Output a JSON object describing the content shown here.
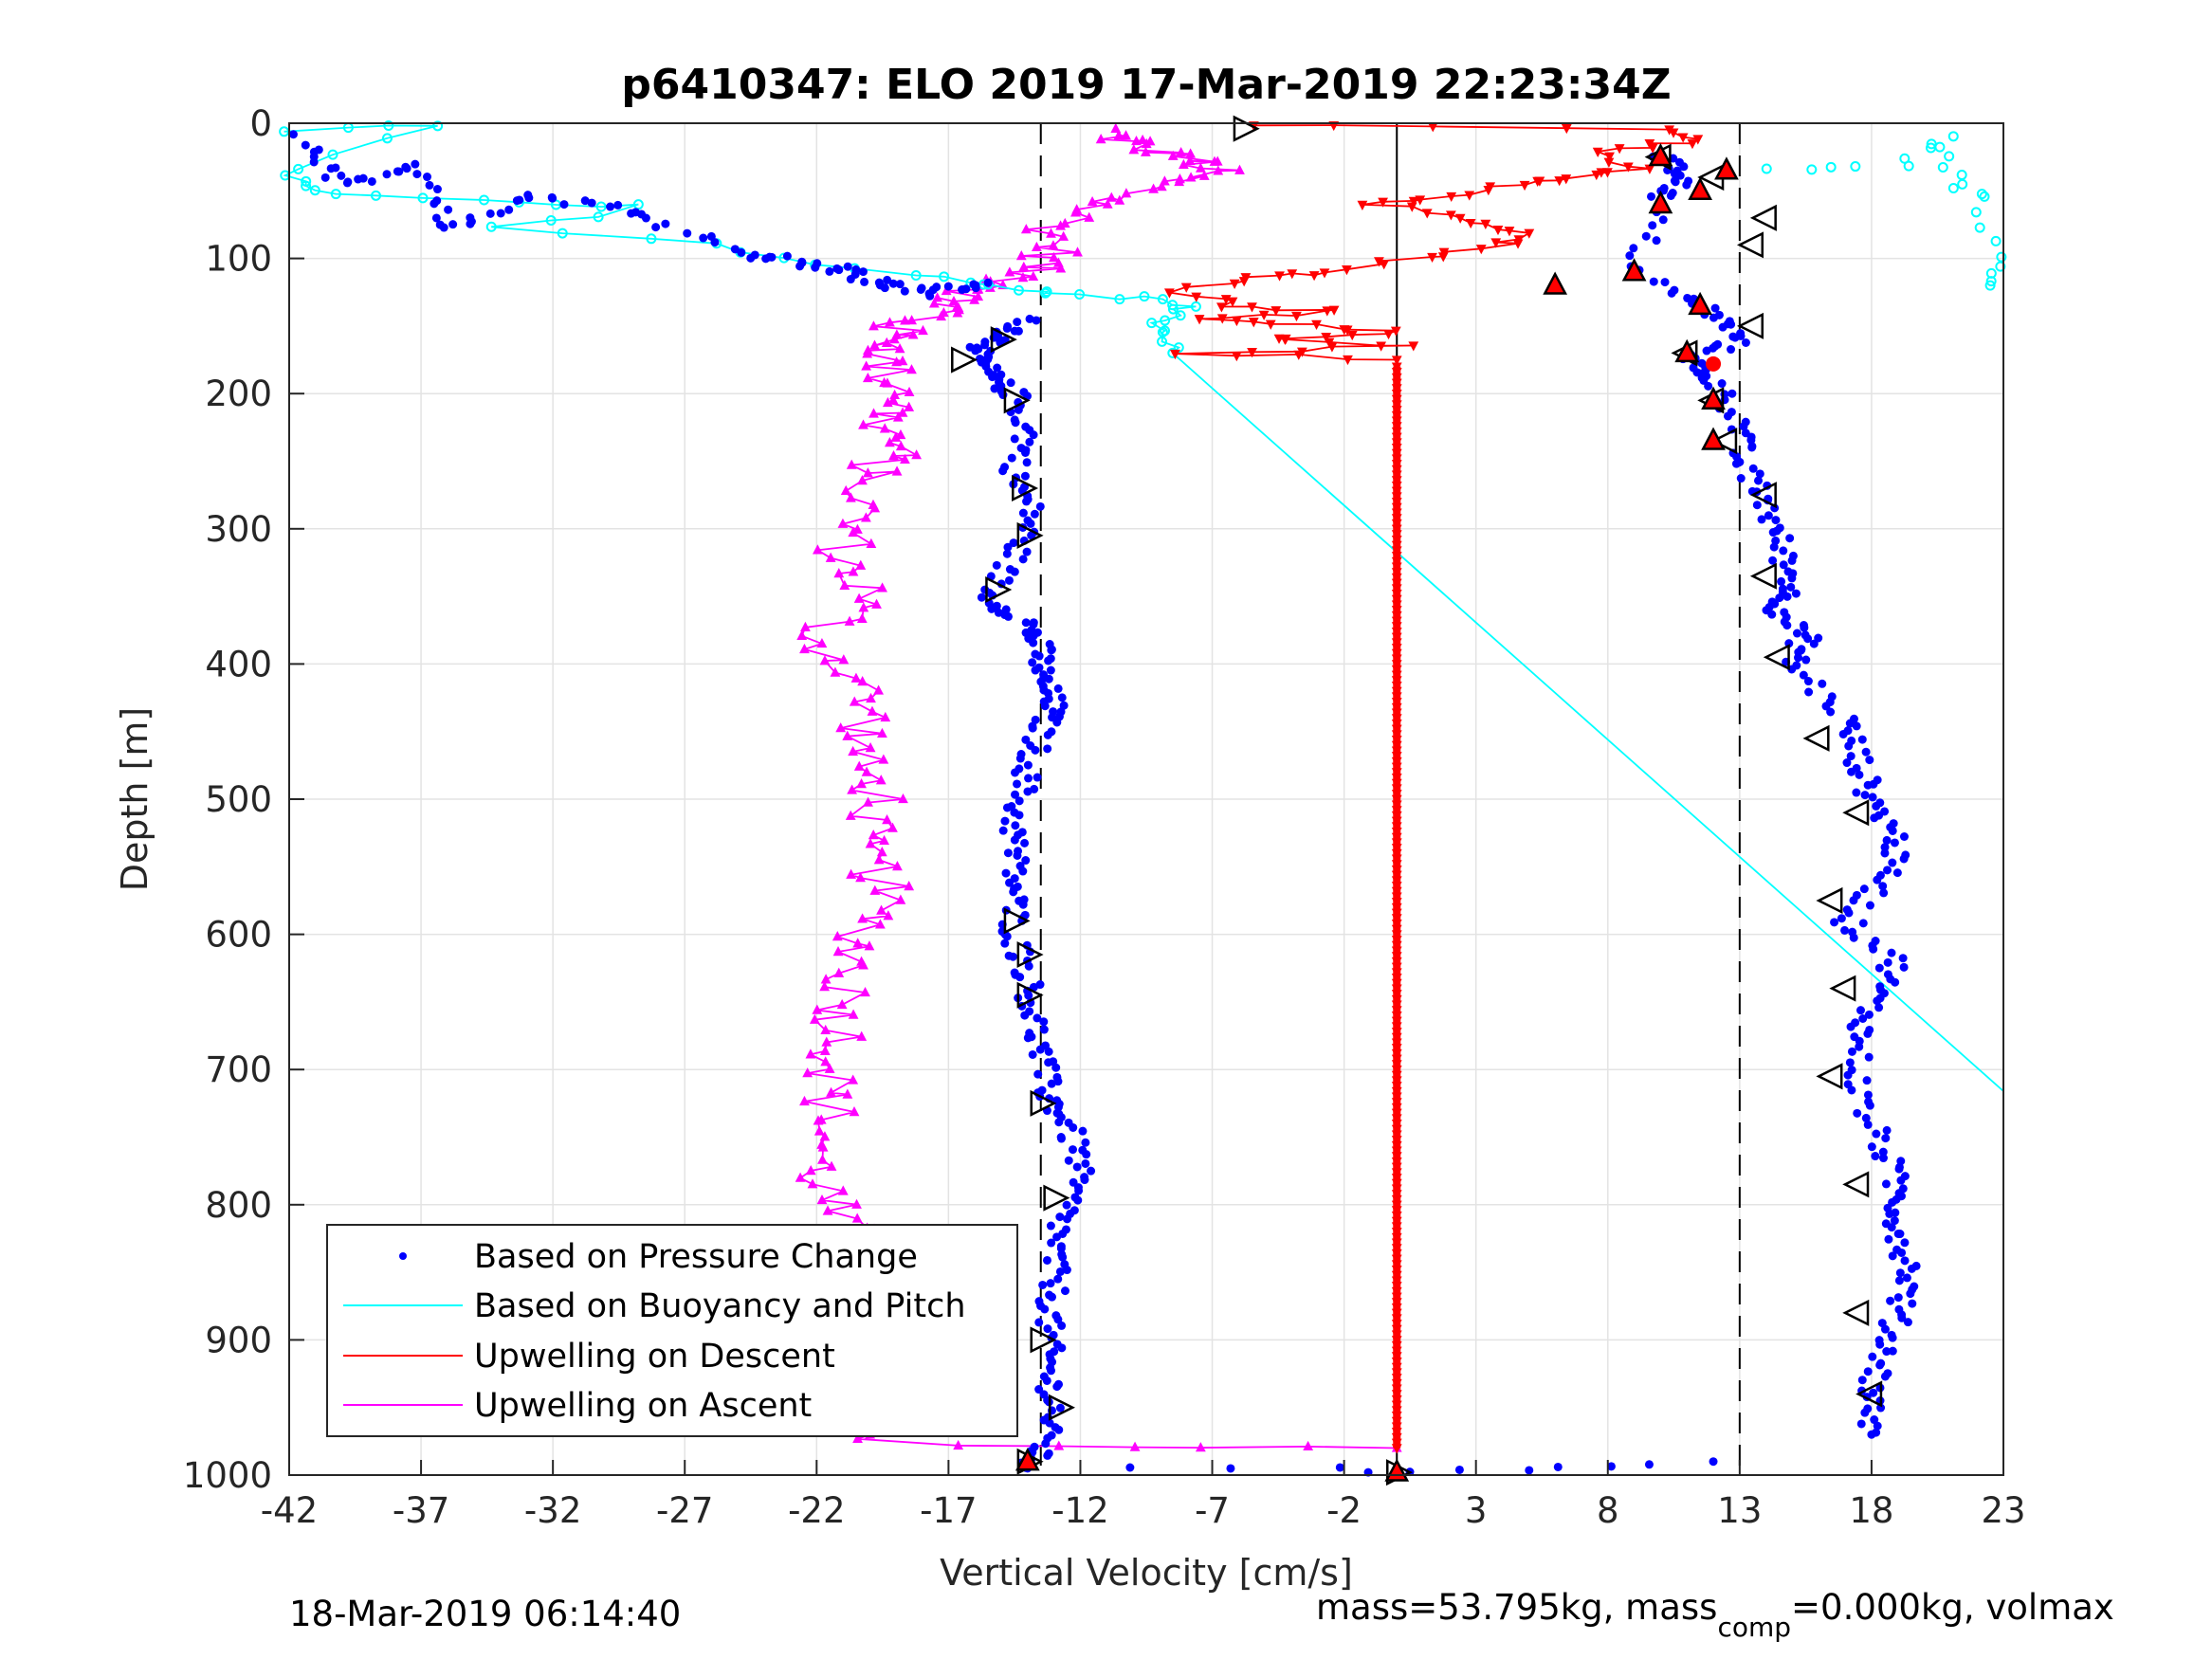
{
  "chart_data": {
    "type": "scatter",
    "title": "p6410347: ELO 2019 17-Mar-2019 22:23:34Z",
    "xlabel": "Vertical Velocity [cm/s]",
    "ylabel": "Depth [m]",
    "xlim": [
      -42,
      23
    ],
    "ylim": [
      1000,
      0
    ],
    "y_reversed": true,
    "grid": true,
    "legend_position": "lower-left",
    "xticks": [
      -42,
      -37,
      -32,
      -27,
      -22,
      -17,
      -12,
      -7,
      -2,
      3,
      8,
      13,
      18,
      23
    ],
    "xtick_labels": [
      "-42",
      "-37",
      "-32",
      "-27",
      "-22",
      "-17",
      "-12",
      "-7",
      "-2",
      "3",
      "8",
      "13",
      "18",
      "23"
    ],
    "yticks": [
      0,
      100,
      200,
      300,
      400,
      500,
      600,
      700,
      800,
      900,
      1000
    ],
    "ytick_labels": [
      "0",
      "100",
      "200",
      "300",
      "400",
      "500",
      "600",
      "700",
      "800",
      "900",
      "1000"
    ],
    "reference_lines": {
      "solid_x": 0,
      "dashed_x": [
        -13.5,
        13
      ]
    },
    "series": [
      {
        "name": "Based on Pressure Change",
        "color": "#0000ff",
        "marker": "dot",
        "descent": [
          [
            -14,
            145
          ],
          [
            -15,
            160
          ],
          [
            -16,
            170
          ],
          [
            -15.5,
            185
          ],
          [
            -14.5,
            200
          ],
          [
            -14,
            230
          ],
          [
            -14.5,
            260
          ],
          [
            -13.8,
            290
          ],
          [
            -14.5,
            320
          ],
          [
            -15.5,
            350
          ],
          [
            -14,
            370
          ],
          [
            -13.5,
            390
          ],
          [
            -13.5,
            410
          ],
          [
            -13,
            430
          ],
          [
            -13.5,
            450
          ],
          [
            -14,
            480
          ],
          [
            -14.5,
            510
          ],
          [
            -14.5,
            540
          ],
          [
            -14.5,
            570
          ],
          [
            -14.5,
            600
          ],
          [
            -14,
            630
          ],
          [
            -13.8,
            660
          ],
          [
            -13.5,
            690
          ],
          [
            -13.2,
            720
          ],
          [
            -12.5,
            740
          ],
          [
            -12,
            770
          ],
          [
            -12.5,
            800
          ],
          [
            -13,
            830
          ],
          [
            -13,
            860
          ],
          [
            -13.2,
            890
          ],
          [
            -13.2,
            920
          ],
          [
            -13,
            950
          ],
          [
            -13.5,
            980
          ],
          [
            -14,
            995
          ]
        ],
        "ascent": [
          [
            10,
            25
          ],
          [
            11,
            40
          ],
          [
            10,
            55
          ],
          [
            9,
            110
          ],
          [
            12,
            140
          ],
          [
            13,
            160
          ],
          [
            11,
            175
          ],
          [
            12,
            190
          ],
          [
            13,
            220
          ],
          [
            13,
            250
          ],
          [
            14,
            280
          ],
          [
            14.5,
            310
          ],
          [
            15,
            340
          ],
          [
            14.5,
            360
          ],
          [
            15.5,
            380
          ],
          [
            15,
            400
          ],
          [
            17,
            440
          ],
          [
            17.5,
            470
          ],
          [
            18,
            500
          ],
          [
            19,
            530
          ],
          [
            18.5,
            560
          ],
          [
            17,
            590
          ],
          [
            19,
            620
          ],
          [
            18,
            650
          ],
          [
            17.5,
            680
          ],
          [
            17.5,
            720
          ],
          [
            18.5,
            760
          ],
          [
            19,
            790
          ],
          [
            19,
            820
          ],
          [
            19.5,
            850
          ],
          [
            19,
            880
          ],
          [
            18.5,
            910
          ],
          [
            18,
            940
          ],
          [
            18,
            970
          ]
        ],
        "surface": [
          [
            -41.5,
            10
          ],
          [
            -40,
            45
          ],
          [
            -37,
            30
          ],
          [
            -36,
            80
          ],
          [
            -33,
            55
          ],
          [
            -29,
            65
          ],
          [
            -25,
            95
          ],
          [
            -22,
            105
          ],
          [
            -20,
            115
          ],
          [
            -18,
            125
          ],
          [
            -15.5,
            118
          ]
        ],
        "bottom": [
          [
            -10,
            993
          ],
          [
            -2,
            995
          ],
          [
            0.5,
            998
          ],
          [
            5,
            995
          ],
          [
            8,
            993
          ],
          [
            12,
            990
          ]
        ]
      },
      {
        "name": "Based on Buoyancy and Pitch",
        "color": "#00ffff",
        "marker": "circle",
        "line_shallow": [
          [
            -42,
            5
          ],
          [
            -36.5,
            2
          ],
          [
            -42,
            35
          ],
          [
            -41.5,
            45
          ],
          [
            -39,
            55
          ],
          [
            -33,
            57
          ],
          [
            -29,
            62
          ],
          [
            -34,
            78
          ],
          [
            -26,
            90
          ],
          [
            -22,
            105
          ],
          [
            -17,
            115
          ],
          [
            -15,
            120
          ],
          [
            -13,
            125
          ],
          [
            -10,
            130
          ],
          [
            -8,
            135
          ],
          [
            -9,
            145
          ],
          [
            -9,
            155
          ],
          [
            -8.5,
            170
          ]
        ],
        "line_deep": [
          [
            -8.5,
            170
          ],
          [
            23,
            716
          ]
        ],
        "right_cluster": [
          [
            14,
            35
          ],
          [
            19,
            30
          ],
          [
            21,
            10
          ],
          [
            21,
            40
          ],
          [
            22,
            55
          ],
          [
            22.5,
            100
          ],
          [
            22.5,
            120
          ]
        ]
      },
      {
        "name": "Upwelling on Descent",
        "color": "#ff0000",
        "marker": "triangle-down",
        "curve": [
          [
            -6,
            2
          ],
          [
            10,
            5
          ],
          [
            11,
            15
          ],
          [
            7,
            20
          ],
          [
            9,
            35
          ],
          [
            7,
            40
          ],
          [
            5,
            45
          ],
          [
            2,
            55
          ],
          [
            -1,
            60
          ],
          [
            3,
            70
          ],
          [
            5,
            80
          ],
          [
            4,
            90
          ],
          [
            1,
            100
          ],
          [
            -3,
            110
          ],
          [
            -5,
            115
          ],
          [
            -8,
            125
          ],
          [
            -6,
            135
          ],
          [
            -2,
            140
          ],
          [
            -8,
            145
          ],
          [
            -3,
            150
          ],
          [
            0,
            155
          ],
          [
            -5,
            160
          ],
          [
            0,
            165
          ],
          [
            -8,
            170
          ],
          [
            0,
            175
          ]
        ],
        "column": [
          [
            0,
            180
          ],
          [
            0,
            400
          ],
          [
            0,
            600
          ],
          [
            0,
            800
          ],
          [
            0,
            980
          ]
        ]
      },
      {
        "name": "Upwelling on Ascent",
        "color": "#ff00ff",
        "marker": "triangle-up",
        "curve": [
          [
            -11,
            5
          ],
          [
            -10,
            15
          ],
          [
            -8,
            25
          ],
          [
            -7,
            35
          ],
          [
            -9,
            45
          ],
          [
            -11,
            60
          ],
          [
            -13,
            75
          ],
          [
            -13,
            95
          ],
          [
            -14,
            110
          ],
          [
            -15,
            120
          ],
          [
            -17,
            130
          ],
          [
            -17,
            140
          ],
          [
            -19,
            150
          ],
          [
            -19,
            165
          ],
          [
            -19.5,
            180
          ],
          [
            -18.5,
            200
          ],
          [
            -19.5,
            220
          ],
          [
            -19,
            240
          ],
          [
            -20,
            260
          ],
          [
            -20.5,
            290
          ],
          [
            -21,
            320
          ],
          [
            -20,
            350
          ],
          [
            -22,
            380
          ],
          [
            -20.5,
            410
          ],
          [
            -20,
            440
          ],
          [
            -20.5,
            470
          ],
          [
            -19.5,
            500
          ],
          [
            -20.5,
            530
          ],
          [
            -19.5,
            560
          ],
          [
            -20,
            590
          ],
          [
            -20.5,
            620
          ],
          [
            -21,
            650
          ],
          [
            -21,
            680
          ],
          [
            -21.5,
            710
          ],
          [
            -21.5,
            740
          ],
          [
            -22,
            770
          ],
          [
            -21.5,
            800
          ],
          [
            -20.5,
            830
          ],
          [
            -20.5,
            860
          ],
          [
            -19.5,
            890
          ],
          [
            -20,
            920
          ],
          [
            -20.5,
            950
          ],
          [
            -19.5,
            975
          ],
          [
            0,
            980
          ]
        ]
      }
    ],
    "annotations": {
      "vehicle_markers_descent": [
        [
          -5.8,
          4
        ],
        [
          -15,
          160
        ],
        [
          -16.5,
          175
        ],
        [
          -14.5,
          205
        ],
        [
          -14.2,
          270
        ],
        [
          -14,
          305
        ],
        [
          -15.2,
          345
        ],
        [
          -14.5,
          590
        ],
        [
          -14,
          615
        ],
        [
          -14,
          645
        ],
        [
          -13.5,
          725
        ],
        [
          -13,
          795
        ],
        [
          -13.5,
          900
        ],
        [
          -12.8,
          950
        ],
        [
          -14,
          990
        ],
        [
          0,
          998
        ]
      ],
      "vehicle_markers_ascent": [
        [
          10,
          25
        ],
        [
          12,
          40
        ],
        [
          14,
          70
        ],
        [
          13.5,
          90
        ],
        [
          13.5,
          150
        ],
        [
          11,
          170
        ],
        [
          12,
          205
        ],
        [
          12.5,
          235
        ],
        [
          14,
          275
        ],
        [
          14,
          335
        ],
        [
          14.5,
          395
        ],
        [
          16,
          455
        ],
        [
          17.5,
          510
        ],
        [
          16.5,
          575
        ],
        [
          17,
          640
        ],
        [
          16.5,
          705
        ],
        [
          17.5,
          785
        ],
        [
          17.5,
          880
        ],
        [
          18,
          940
        ]
      ],
      "red_up_markers": [
        [
          10,
          25
        ],
        [
          12.5,
          35
        ],
        [
          11.5,
          50
        ],
        [
          10,
          60
        ],
        [
          6,
          120
        ],
        [
          9,
          110
        ],
        [
          11.5,
          135
        ],
        [
          11,
          170
        ],
        [
          12,
          205
        ],
        [
          12,
          235
        ],
        [
          -14,
          990
        ],
        [
          0,
          998
        ]
      ],
      "red_dot": [
        [
          12,
          178
        ]
      ]
    }
  },
  "footer": {
    "left": "18-Mar-2019 06:14:40",
    "right_a": "mass=53.795kg, mass",
    "right_sub": "comp",
    "right_b": "=0.000kg, volmax"
  }
}
